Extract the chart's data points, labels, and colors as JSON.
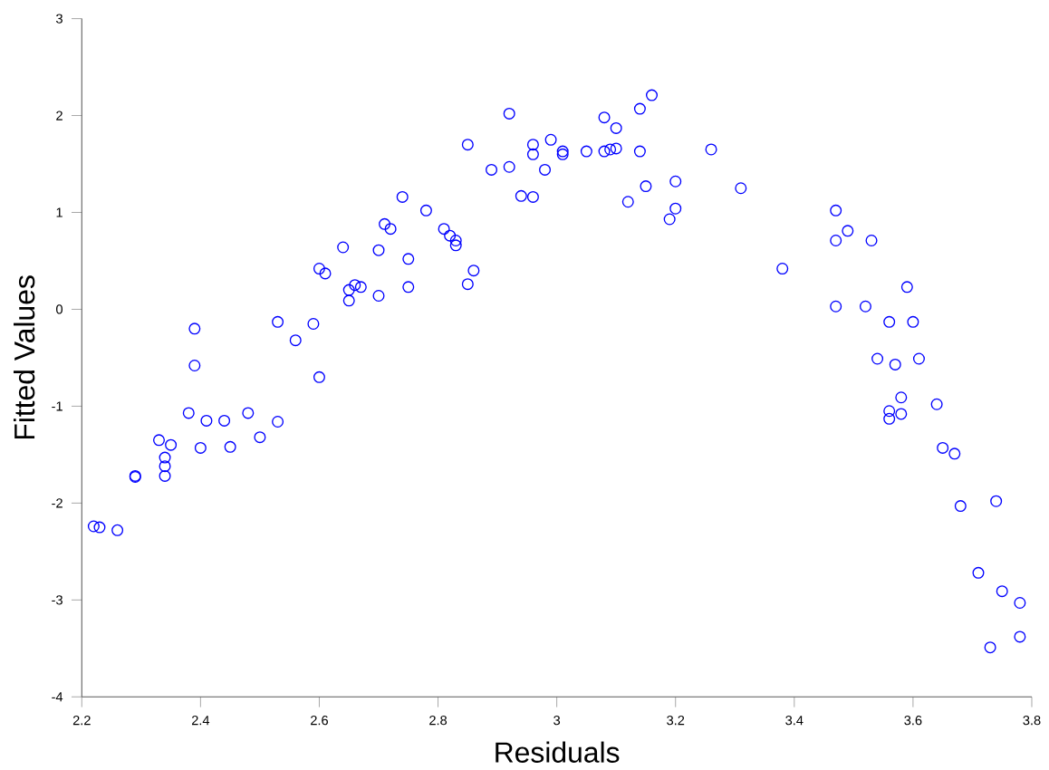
{
  "chart_data": {
    "type": "scatter",
    "xlabel": "Residuals",
    "ylabel": "Fitted Values",
    "xlim": [
      2.2,
      3.8
    ],
    "ylim": [
      -4,
      3
    ],
    "xticks": [
      2.2,
      2.4,
      2.6,
      2.8,
      3,
      3.2,
      3.4,
      3.6,
      3.8
    ],
    "yticks": [
      -4,
      -3,
      -2,
      -1,
      0,
      1,
      2,
      3
    ],
    "marker": "circle",
    "series": [
      {
        "color": "#0000ff",
        "x": [
          2.22,
          2.23,
          2.26,
          2.29,
          2.29,
          2.33,
          2.34,
          2.34,
          2.34,
          2.35,
          2.38,
          2.39,
          2.39,
          2.4,
          2.41,
          2.44,
          2.45,
          2.48,
          2.5,
          2.53,
          2.53,
          2.56,
          2.59,
          2.6,
          2.6,
          2.61,
          2.64,
          2.65,
          2.65,
          2.66,
          2.67,
          2.7,
          2.7,
          2.71,
          2.72,
          2.74,
          2.75,
          2.75,
          2.78,
          2.81,
          2.82,
          2.83,
          2.83,
          2.85,
          2.86,
          2.85,
          2.89,
          2.92,
          2.92,
          2.94,
          2.96,
          2.96,
          2.96,
          2.98,
          2.99,
          3.01,
          3.01,
          3.05,
          3.08,
          3.08,
          3.09,
          3.1,
          3.1,
          3.12,
          3.14,
          3.14,
          3.15,
          3.16,
          3.19,
          3.2,
          3.2,
          3.26,
          3.31,
          3.38,
          3.47,
          3.49,
          3.47,
          3.53,
          3.59,
          3.47,
          3.52,
          3.56,
          3.6,
          3.54,
          3.57,
          3.61,
          3.58,
          3.56,
          3.56,
          3.58,
          3.64,
          3.65,
          3.67,
          3.68,
          3.74,
          3.71,
          3.75,
          3.78,
          3.78,
          3.73
        ],
        "values": [
          -2.24,
          -2.25,
          -2.28,
          -1.72,
          -1.73,
          -1.35,
          -1.72,
          -1.53,
          -1.62,
          -1.4,
          -1.07,
          -0.58,
          -0.2,
          -1.43,
          -1.15,
          -1.15,
          -1.42,
          -1.07,
          -1.32,
          -1.16,
          -0.13,
          -0.32,
          -0.15,
          -0.7,
          0.42,
          0.37,
          0.64,
          0.2,
          0.09,
          0.25,
          0.23,
          0.14,
          0.61,
          0.88,
          0.83,
          1.16,
          0.52,
          0.23,
          1.02,
          0.83,
          0.76,
          0.71,
          0.66,
          0.26,
          0.4,
          1.7,
          1.44,
          1.47,
          2.02,
          1.17,
          1.16,
          1.7,
          1.6,
          1.44,
          1.75,
          1.6,
          1.63,
          1.63,
          1.63,
          1.98,
          1.65,
          1.87,
          1.66,
          1.11,
          2.07,
          1.63,
          1.27,
          2.21,
          0.93,
          1.32,
          1.04,
          1.65,
          1.25,
          0.42,
          1.02,
          0.81,
          0.71,
          0.71,
          0.23,
          0.03,
          0.03,
          -0.13,
          -0.13,
          -0.51,
          -0.57,
          -0.51,
          -0.91,
          -1.05,
          -1.13,
          -1.08,
          -0.98,
          -1.43,
          -1.49,
          -2.03,
          -1.98,
          -2.72,
          -2.91,
          -3.03,
          -3.38,
          -3.49
        ]
      }
    ]
  }
}
